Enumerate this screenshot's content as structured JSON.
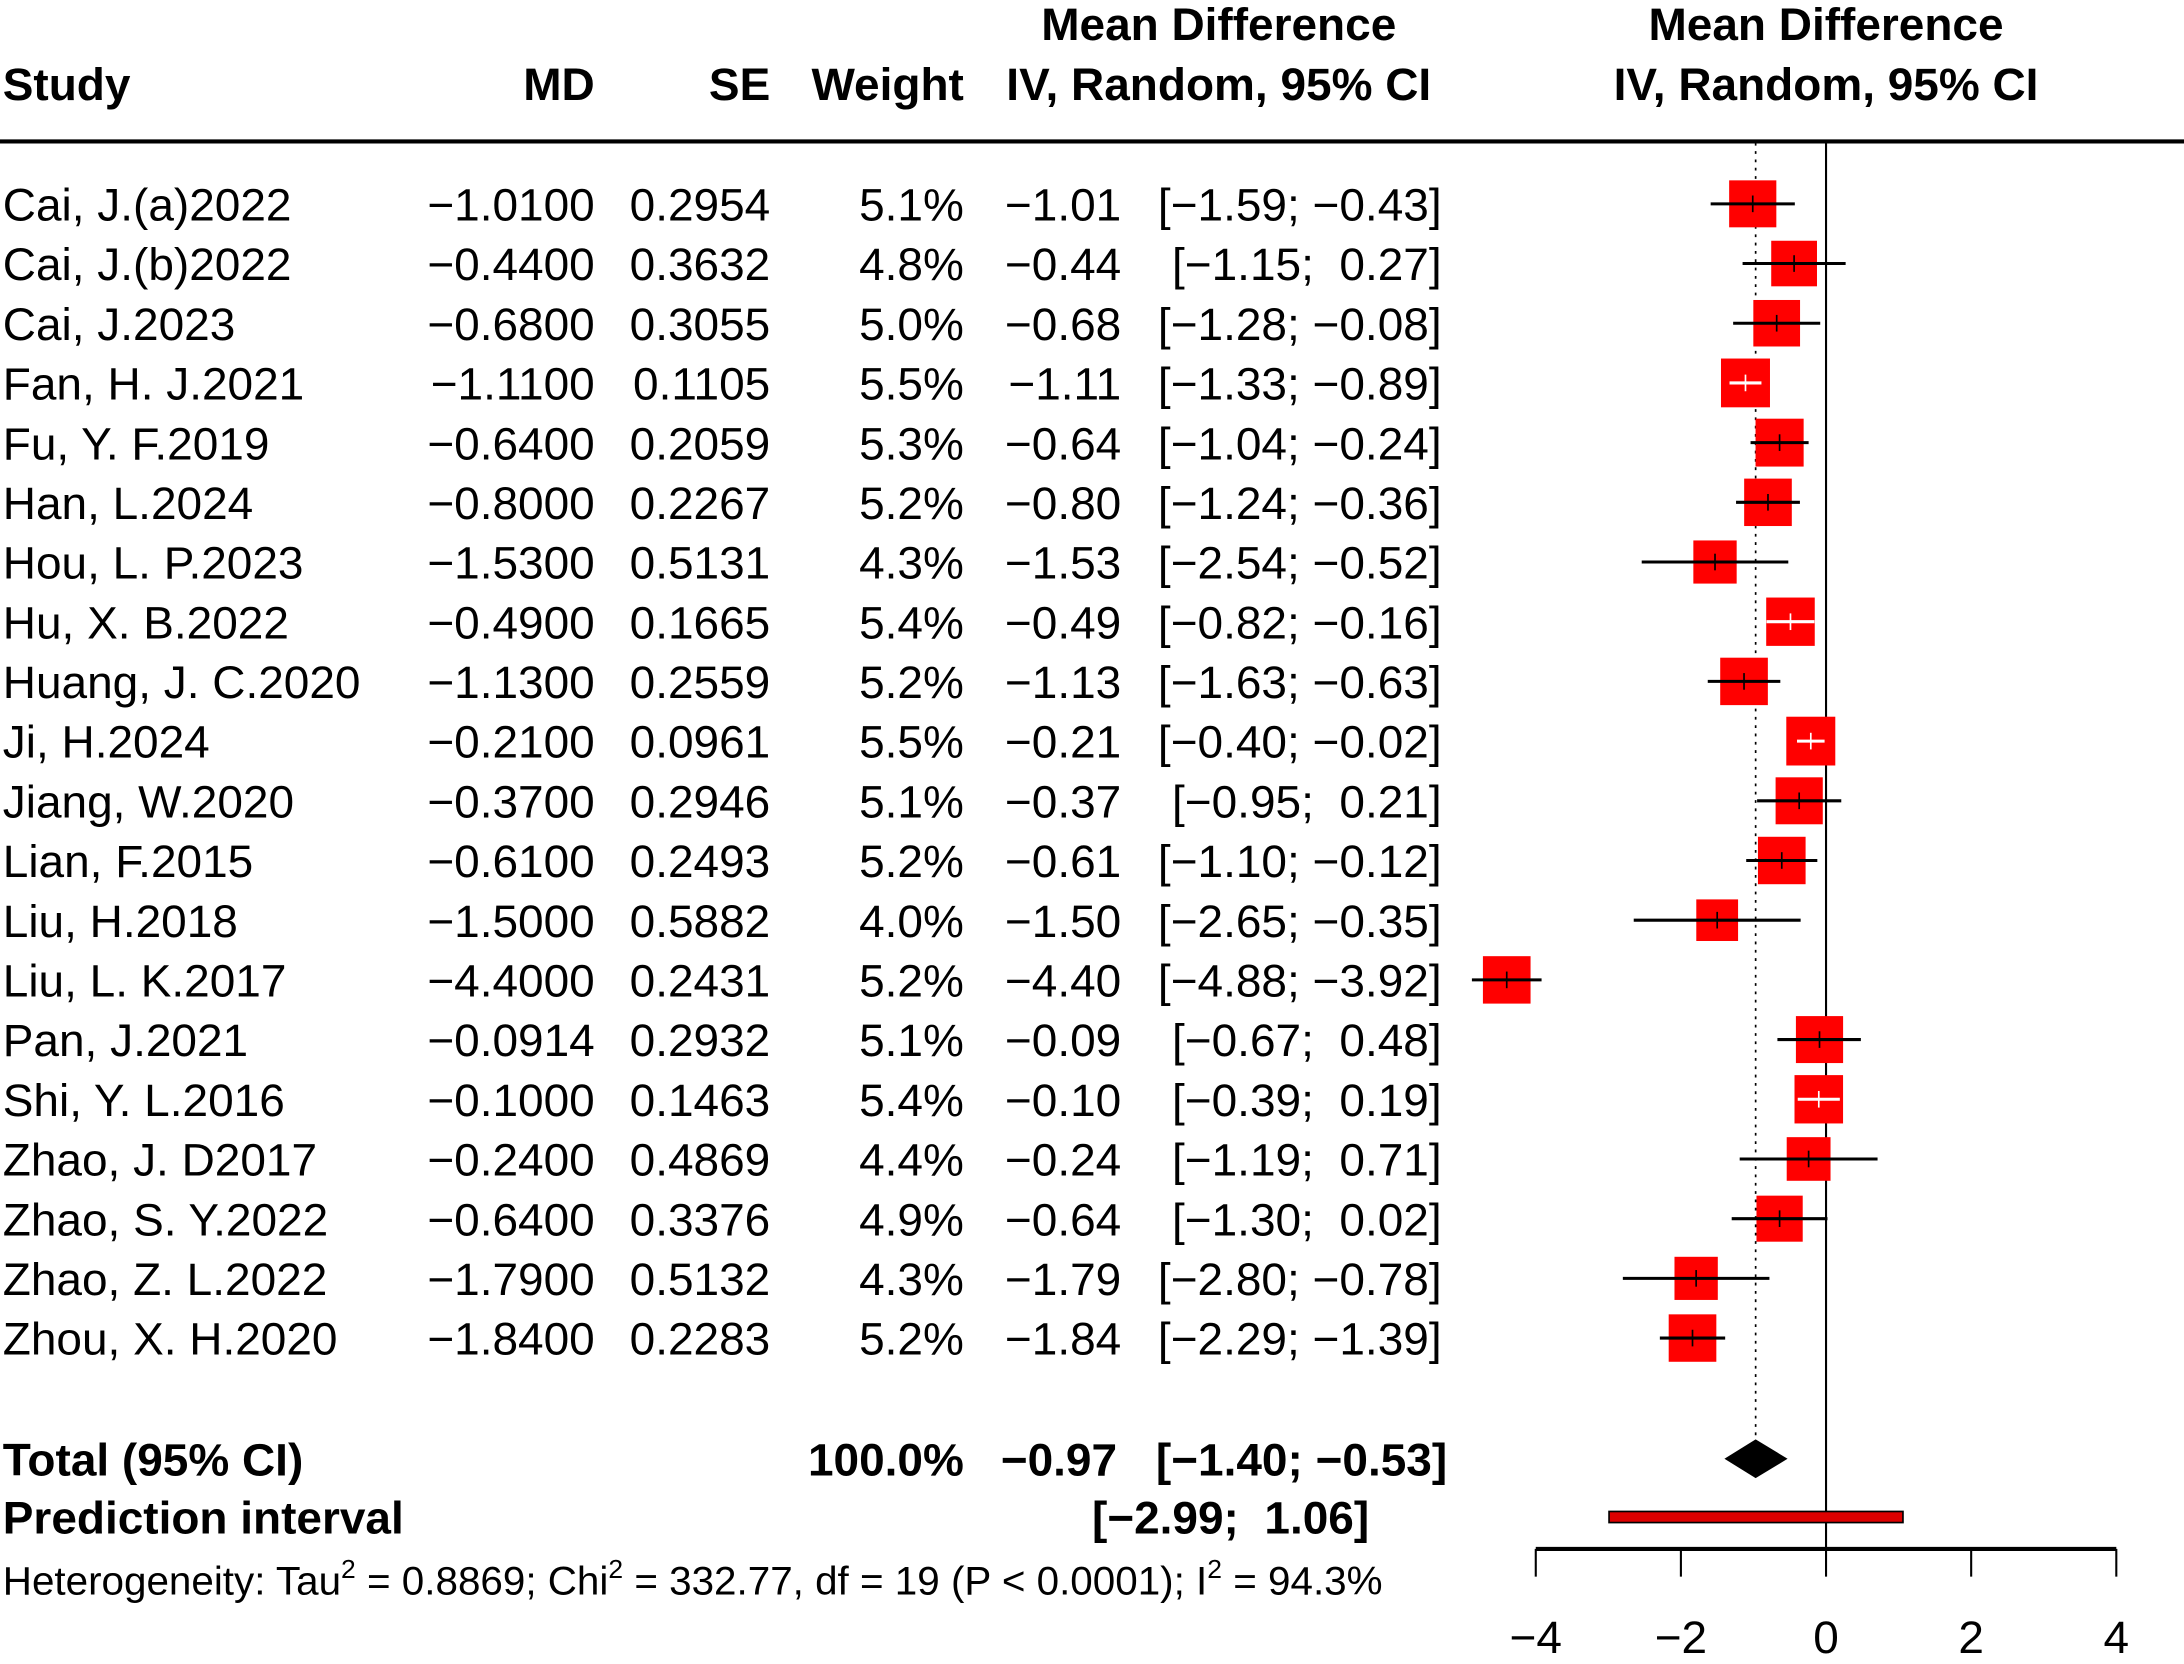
{
  "chart_data": {
    "type": "forest",
    "headers": {
      "study": "Study",
      "md": "MD",
      "se": "SE",
      "weight": "Weight",
      "ci_col_line1": "Mean Difference",
      "ci_col_line2": "IV, Random, 95% CI",
      "plot_line1": "Mean Difference",
      "plot_line2": "IV, Random, 95% CI"
    },
    "studies": [
      {
        "name": "Cai, J.(a)2022",
        "md": "−1.0100",
        "se": "0.2954",
        "weight": "5.1%",
        "w": 5.1,
        "est_text": "−1.01",
        "ci_text": "[−1.59; −0.43]",
        "est": -1.01,
        "lower": -1.59,
        "upper": -0.43
      },
      {
        "name": "Cai, J.(b)2022",
        "md": "−0.4400",
        "se": "0.3632",
        "weight": "4.8%",
        "w": 4.8,
        "est_text": "−0.44",
        "ci_text": "[−1.15;  0.27]",
        "est": -0.44,
        "lower": -1.15,
        "upper": 0.27
      },
      {
        "name": "Cai, J.2023",
        "md": "−0.6800",
        "se": "0.3055",
        "weight": "5.0%",
        "w": 5.0,
        "est_text": "−0.68",
        "ci_text": "[−1.28; −0.08]",
        "est": -0.68,
        "lower": -1.28,
        "upper": -0.08
      },
      {
        "name": "Fan, H. J.2021",
        "md": "−1.1100",
        "se": "0.1105",
        "weight": "5.5%",
        "w": 5.5,
        "est_text": "−1.11",
        "ci_text": "[−1.33; −0.89]",
        "est": -1.11,
        "lower": -1.33,
        "upper": -0.89
      },
      {
        "name": "Fu, Y. F.2019",
        "md": "−0.6400",
        "se": "0.2059",
        "weight": "5.3%",
        "w": 5.3,
        "est_text": "−0.64",
        "ci_text": "[−1.04; −0.24]",
        "est": -0.64,
        "lower": -1.04,
        "upper": -0.24
      },
      {
        "name": "Han, L.2024",
        "md": "−0.8000",
        "se": "0.2267",
        "weight": "5.2%",
        "w": 5.2,
        "est_text": "−0.80",
        "ci_text": "[−1.24; −0.36]",
        "est": -0.8,
        "lower": -1.24,
        "upper": -0.36
      },
      {
        "name": "Hou, L. P.2023",
        "md": "−1.5300",
        "se": "0.5131",
        "weight": "4.3%",
        "w": 4.3,
        "est_text": "−1.53",
        "ci_text": "[−2.54; −0.52]",
        "est": -1.53,
        "lower": -2.54,
        "upper": -0.52
      },
      {
        "name": "Hu, X. B.2022",
        "md": "−0.4900",
        "se": "0.1665",
        "weight": "5.4%",
        "w": 5.4,
        "est_text": "−0.49",
        "ci_text": "[−0.82; −0.16]",
        "est": -0.49,
        "lower": -0.82,
        "upper": -0.16
      },
      {
        "name": "Huang, J. C.2020",
        "md": "−1.1300",
        "se": "0.2559",
        "weight": "5.2%",
        "w": 5.2,
        "est_text": "−1.13",
        "ci_text": "[−1.63; −0.63]",
        "est": -1.13,
        "lower": -1.63,
        "upper": -0.63
      },
      {
        "name": "Ji, H.2024",
        "md": "−0.2100",
        "se": "0.0961",
        "weight": "5.5%",
        "w": 5.5,
        "est_text": "−0.21",
        "ci_text": "[−0.40; −0.02]",
        "est": -0.21,
        "lower": -0.4,
        "upper": -0.02
      },
      {
        "name": "Jiang, W.2020",
        "md": "−0.3700",
        "se": "0.2946",
        "weight": "5.1%",
        "w": 5.1,
        "est_text": "−0.37",
        "ci_text": "[−0.95;  0.21]",
        "est": -0.37,
        "lower": -0.95,
        "upper": 0.21
      },
      {
        "name": "Lian, F.2015",
        "md": "−0.6100",
        "se": "0.2493",
        "weight": "5.2%",
        "w": 5.2,
        "est_text": "−0.61",
        "ci_text": "[−1.10; −0.12]",
        "est": -0.61,
        "lower": -1.1,
        "upper": -0.12
      },
      {
        "name": "Liu, H.2018",
        "md": "−1.5000",
        "se": "0.5882",
        "weight": "4.0%",
        "w": 4.0,
        "est_text": "−1.50",
        "ci_text": "[−2.65; −0.35]",
        "est": -1.5,
        "lower": -2.65,
        "upper": -0.35
      },
      {
        "name": "Liu, L. K.2017",
        "md": "−4.4000",
        "se": "0.2431",
        "weight": "5.2%",
        "w": 5.2,
        "est_text": "−4.40",
        "ci_text": "[−4.88; −3.92]",
        "est": -4.4,
        "lower": -4.88,
        "upper": -3.92
      },
      {
        "name": "Pan, J.2021",
        "md": "−0.0914",
        "se": "0.2932",
        "weight": "5.1%",
        "w": 5.1,
        "est_text": "−0.09",
        "ci_text": "[−0.67;  0.48]",
        "est": -0.09,
        "lower": -0.67,
        "upper": 0.48
      },
      {
        "name": "Shi, Y. L.2016",
        "md": "−0.1000",
        "se": "0.1463",
        "weight": "5.4%",
        "w": 5.4,
        "est_text": "−0.10",
        "ci_text": "[−0.39;  0.19]",
        "est": -0.1,
        "lower": -0.39,
        "upper": 0.19
      },
      {
        "name": "Zhao, J. D2017",
        "md": "−0.2400",
        "se": "0.4869",
        "weight": "4.4%",
        "w": 4.4,
        "est_text": "−0.24",
        "ci_text": "[−1.19;  0.71]",
        "est": -0.24,
        "lower": -1.19,
        "upper": 0.71
      },
      {
        "name": "Zhao, S. Y.2022",
        "md": "−0.6400",
        "se": "0.3376",
        "weight": "4.9%",
        "w": 4.9,
        "est_text": "−0.64",
        "ci_text": "[−1.30;  0.02]",
        "est": -0.64,
        "lower": -1.3,
        "upper": 0.02
      },
      {
        "name": "Zhao, Z. L.2022",
        "md": "−1.7900",
        "se": "0.5132",
        "weight": "4.3%",
        "w": 4.3,
        "est_text": "−1.79",
        "ci_text": "[−2.80; −0.78]",
        "est": -1.79,
        "lower": -2.8,
        "upper": -0.78
      },
      {
        "name": "Zhou, X. H.2020",
        "md": "−1.8400",
        "se": "0.2283",
        "weight": "5.2%",
        "w": 5.2,
        "est_text": "−1.84",
        "ci_text": "[−2.29; −1.39]",
        "est": -1.84,
        "lower": -2.29,
        "upper": -1.39
      }
    ],
    "total": {
      "label": "Total (95% CI)",
      "weight": "100.0%",
      "est_text": "−0.97",
      "ci_text": "[−1.40; −0.53]",
      "est": -0.97,
      "lower": -1.4,
      "upper": -0.53
    },
    "prediction": {
      "label": "Prediction interval",
      "ci_text": "[−2.99;  1.06]",
      "lower": -2.99,
      "upper": 1.06
    },
    "heterogeneity": {
      "prefix": "Heterogeneity: Tau",
      "sup1": "2",
      "part2": " = 0.8869; Chi",
      "sup2": "2",
      "part3": " = 332.77, df = 19 (P < 0.0001); I",
      "sup3": "2",
      "part4": " = 94.3%"
    },
    "xaxis": {
      "range": [
        -4,
        4
      ],
      "ticks": [
        -4,
        -2,
        0,
        2,
        4
      ],
      "tick_labels": [
        "−4",
        "−2",
        "0",
        "2",
        "4"
      ]
    },
    "colors": {
      "box": "#ff0000",
      "diamond": "#000000",
      "prediction": "#dd0000"
    }
  }
}
